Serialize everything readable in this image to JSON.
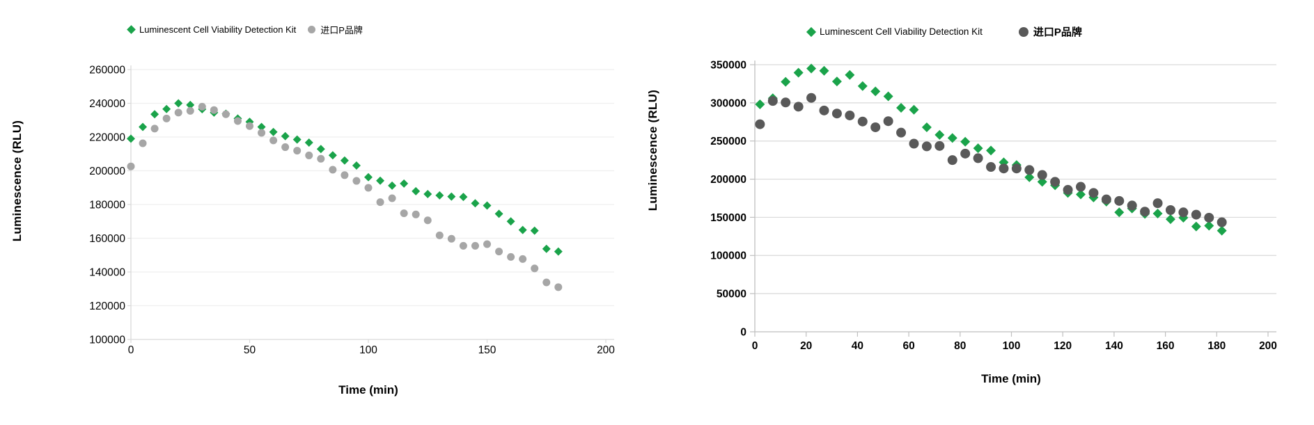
{
  "chart_data": [
    {
      "id": "left-chart",
      "type": "scatter",
      "title": "",
      "xlabel": "Time (min)",
      "ylabel": "Luminescence (RLU)",
      "xlim": [
        0,
        200
      ],
      "ylim": [
        100000,
        260000
      ],
      "xticks": [
        0,
        50,
        100,
        150,
        200
      ],
      "yticks": [
        100000,
        120000,
        140000,
        160000,
        180000,
        200000,
        220000,
        240000,
        260000
      ],
      "grid": "horizontal",
      "legend_position": "top",
      "x": [
        0,
        5,
        10,
        15,
        20,
        25,
        30,
        35,
        40,
        45,
        50,
        55,
        60,
        65,
        70,
        75,
        80,
        85,
        90,
        95,
        100,
        105,
        110,
        115,
        120,
        125,
        130,
        135,
        140,
        145,
        150,
        155,
        160,
        165,
        170,
        175,
        180
      ],
      "series": [
        {
          "name": "Luminescent Cell Viability Detection Kit",
          "marker": "diamond",
          "color": "#1aa34a",
          "values": [
            219000,
            226000,
            233500,
            236600,
            240000,
            239000,
            236500,
            234500,
            233800,
            231000,
            229000,
            226000,
            223000,
            220500,
            218500,
            216700,
            212900,
            209200,
            206100,
            203100,
            196200,
            194100,
            191200,
            192400,
            187900,
            186200,
            185400,
            184700,
            184500,
            180700,
            179400,
            174500,
            170000,
            164900,
            164500,
            153700,
            152100
          ]
        },
        {
          "name": "进口P品牌",
          "marker": "circle",
          "color": "#a6a6a6",
          "values": [
            202600,
            216300,
            225000,
            231000,
            234500,
            235500,
            238000,
            236000,
            233500,
            229500,
            226500,
            222500,
            218000,
            214000,
            211900,
            209100,
            207100,
            200600,
            197400,
            194000,
            189900,
            181400,
            183700,
            174800,
            174100,
            170600,
            161700,
            159700,
            155500,
            155500,
            156500,
            152100,
            148900,
            147700,
            142100,
            133800,
            131000
          ]
        }
      ]
    },
    {
      "id": "right-chart",
      "type": "scatter",
      "title": "",
      "xlabel": "Time  (min)",
      "ylabel": "Luminescence  (RLU)",
      "xlim": [
        0,
        200
      ],
      "ylim": [
        0,
        350000
      ],
      "xticks": [
        0,
        20,
        40,
        60,
        80,
        100,
        120,
        140,
        160,
        180,
        200
      ],
      "yticks": [
        0,
        50000,
        100000,
        150000,
        200000,
        250000,
        300000,
        350000
      ],
      "grid": "horizontal",
      "legend_position": "top",
      "x": [
        2,
        7,
        12,
        17,
        22,
        27,
        32,
        37,
        42,
        47,
        52,
        57,
        62,
        67,
        72,
        77,
        82,
        87,
        92,
        97,
        102,
        107,
        112,
        117,
        122,
        127,
        132,
        137,
        142,
        147,
        152,
        157,
        162,
        167,
        172,
        177,
        182
      ],
      "series": [
        {
          "name": "Luminescent Cell Viability Detection Kit",
          "marker": "diamond",
          "color": "#1aa34a",
          "values": [
            298000,
            306000,
            327500,
            339500,
            345000,
            342000,
            328000,
            336500,
            322000,
            315000,
            308500,
            293500,
            291000,
            268000,
            258000,
            254000,
            249000,
            240500,
            237500,
            222000,
            218500,
            202500,
            196500,
            192000,
            182000,
            180000,
            176000,
            170500,
            156500,
            161500,
            154500,
            155000,
            147500,
            149500,
            138000,
            139000,
            132500
          ]
        },
        {
          "name": "进口P品牌",
          "marker": "circle",
          "color": "#595959",
          "values": [
            272000,
            302500,
            300500,
            295000,
            306500,
            290000,
            286000,
            283500,
            275500,
            268000,
            276000,
            261000,
            246500,
            243000,
            243500,
            225000,
            233500,
            227500,
            216000,
            214000,
            214000,
            212000,
            205500,
            196500,
            186000,
            190000,
            182000,
            173500,
            171500,
            165500,
            157500,
            168500,
            159500,
            156500,
            153500,
            149500,
            143500
          ]
        }
      ]
    }
  ]
}
